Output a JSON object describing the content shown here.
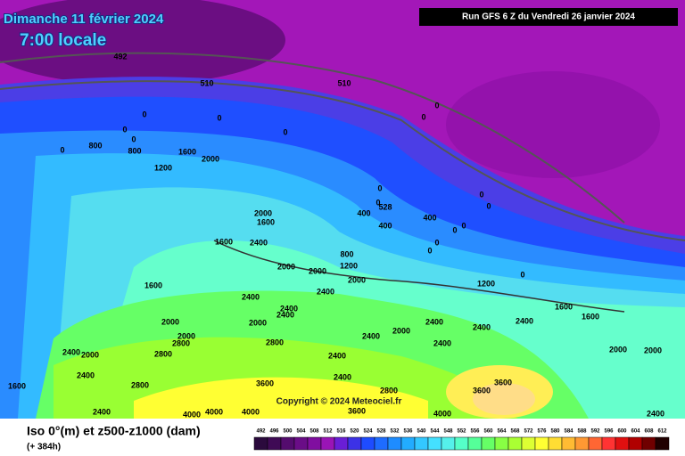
{
  "header": {
    "date": "Dimanche 11 février 2024",
    "time": "7:00 locale",
    "run": "Run GFS 6 Z du Vendredi 26 janvier 2024"
  },
  "footer": {
    "title": "Iso 0°(m) et z500-z1000 (dam)",
    "lead": "(+ 384h)",
    "copyright": "Copyright © 2024 Meteociel.fr"
  },
  "legend": {
    "values": [
      492,
      496,
      500,
      504,
      508,
      512,
      516,
      520,
      524,
      528,
      532,
      536,
      540,
      544,
      548,
      552,
      556,
      560,
      564,
      568,
      572,
      576,
      580,
      584,
      588,
      592,
      596,
      600,
      604,
      608,
      612
    ],
    "colors": [
      "#2b0a3d",
      "#3f0a55",
      "#540c6e",
      "#6a0d87",
      "#800ea0",
      "#9a14b6",
      "#6a1ed6",
      "#3c32e6",
      "#1e4cff",
      "#1e6cff",
      "#1e8cff",
      "#22acff",
      "#33c8ff",
      "#44e0ff",
      "#55f0ea",
      "#55ffc8",
      "#55ff99",
      "#66ff66",
      "#88ff44",
      "#aaff33",
      "#ddff33",
      "#ffff33",
      "#ffdd33",
      "#ffbb33",
      "#ff9933",
      "#ff6633",
      "#ff3333",
      "#e01010",
      "#b00000",
      "#700000",
      "#200000"
    ]
  },
  "map_labels": [
    492,
    510,
    510,
    0,
    0,
    0,
    0,
    0,
    0,
    0,
    0,
    800,
    800,
    1600,
    2000,
    1200,
    0,
    0,
    528,
    400,
    400,
    400,
    0,
    0,
    0,
    0,
    0,
    0,
    2000,
    1600,
    1600,
    2400,
    800,
    1200,
    2000,
    2000,
    2000,
    1200,
    0,
    1600,
    2400,
    2400,
    2400,
    2000,
    2000,
    2400,
    2000,
    2400,
    2400,
    2400,
    1600,
    1600,
    2000,
    2400,
    2000,
    2800,
    2800,
    2800,
    2400,
    2400,
    2000,
    2000,
    2400,
    2400,
    2800,
    3600,
    2400,
    2800,
    3600,
    3600,
    1600,
    2400,
    4000,
    4000,
    4000,
    3600,
    4000,
    2400
  ]
}
